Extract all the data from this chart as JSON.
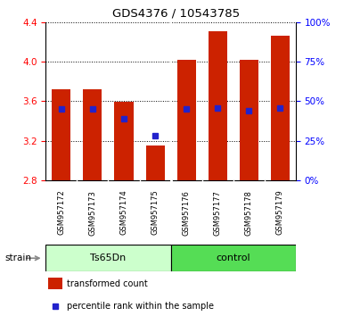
{
  "title": "GDS4376 / 10543785",
  "samples": [
    "GSM957172",
    "GSM957173",
    "GSM957174",
    "GSM957175",
    "GSM957176",
    "GSM957177",
    "GSM957178",
    "GSM957179"
  ],
  "bar_tops": [
    3.72,
    3.72,
    3.59,
    3.15,
    4.02,
    4.31,
    4.02,
    4.26
  ],
  "bar_bottom": 2.8,
  "blue_positions": [
    3.52,
    3.52,
    3.42,
    3.25,
    3.52,
    3.53,
    3.5,
    3.53
  ],
  "ylim_left": [
    2.8,
    4.4
  ],
  "ylim_right": [
    0,
    100
  ],
  "yticks_left": [
    2.8,
    3.2,
    3.6,
    4.0,
    4.4
  ],
  "yticks_right": [
    0,
    25,
    50,
    75,
    100
  ],
  "ytick_labels_right": [
    "0%",
    "25%",
    "50%",
    "75%",
    "100%"
  ],
  "bar_color": "#cc2200",
  "blue_color": "#2222cc",
  "sample_bg_color": "#d0d0d0",
  "group1_label": "Ts65Dn",
  "group2_label": "control",
  "group1_color": "#ccffcc",
  "group2_color": "#55dd55",
  "strain_label": "strain",
  "legend_red": "transformed count",
  "legend_blue": "percentile rank within the sample",
  "bar_width": 0.6,
  "n_group1": 4,
  "n_group2": 4
}
